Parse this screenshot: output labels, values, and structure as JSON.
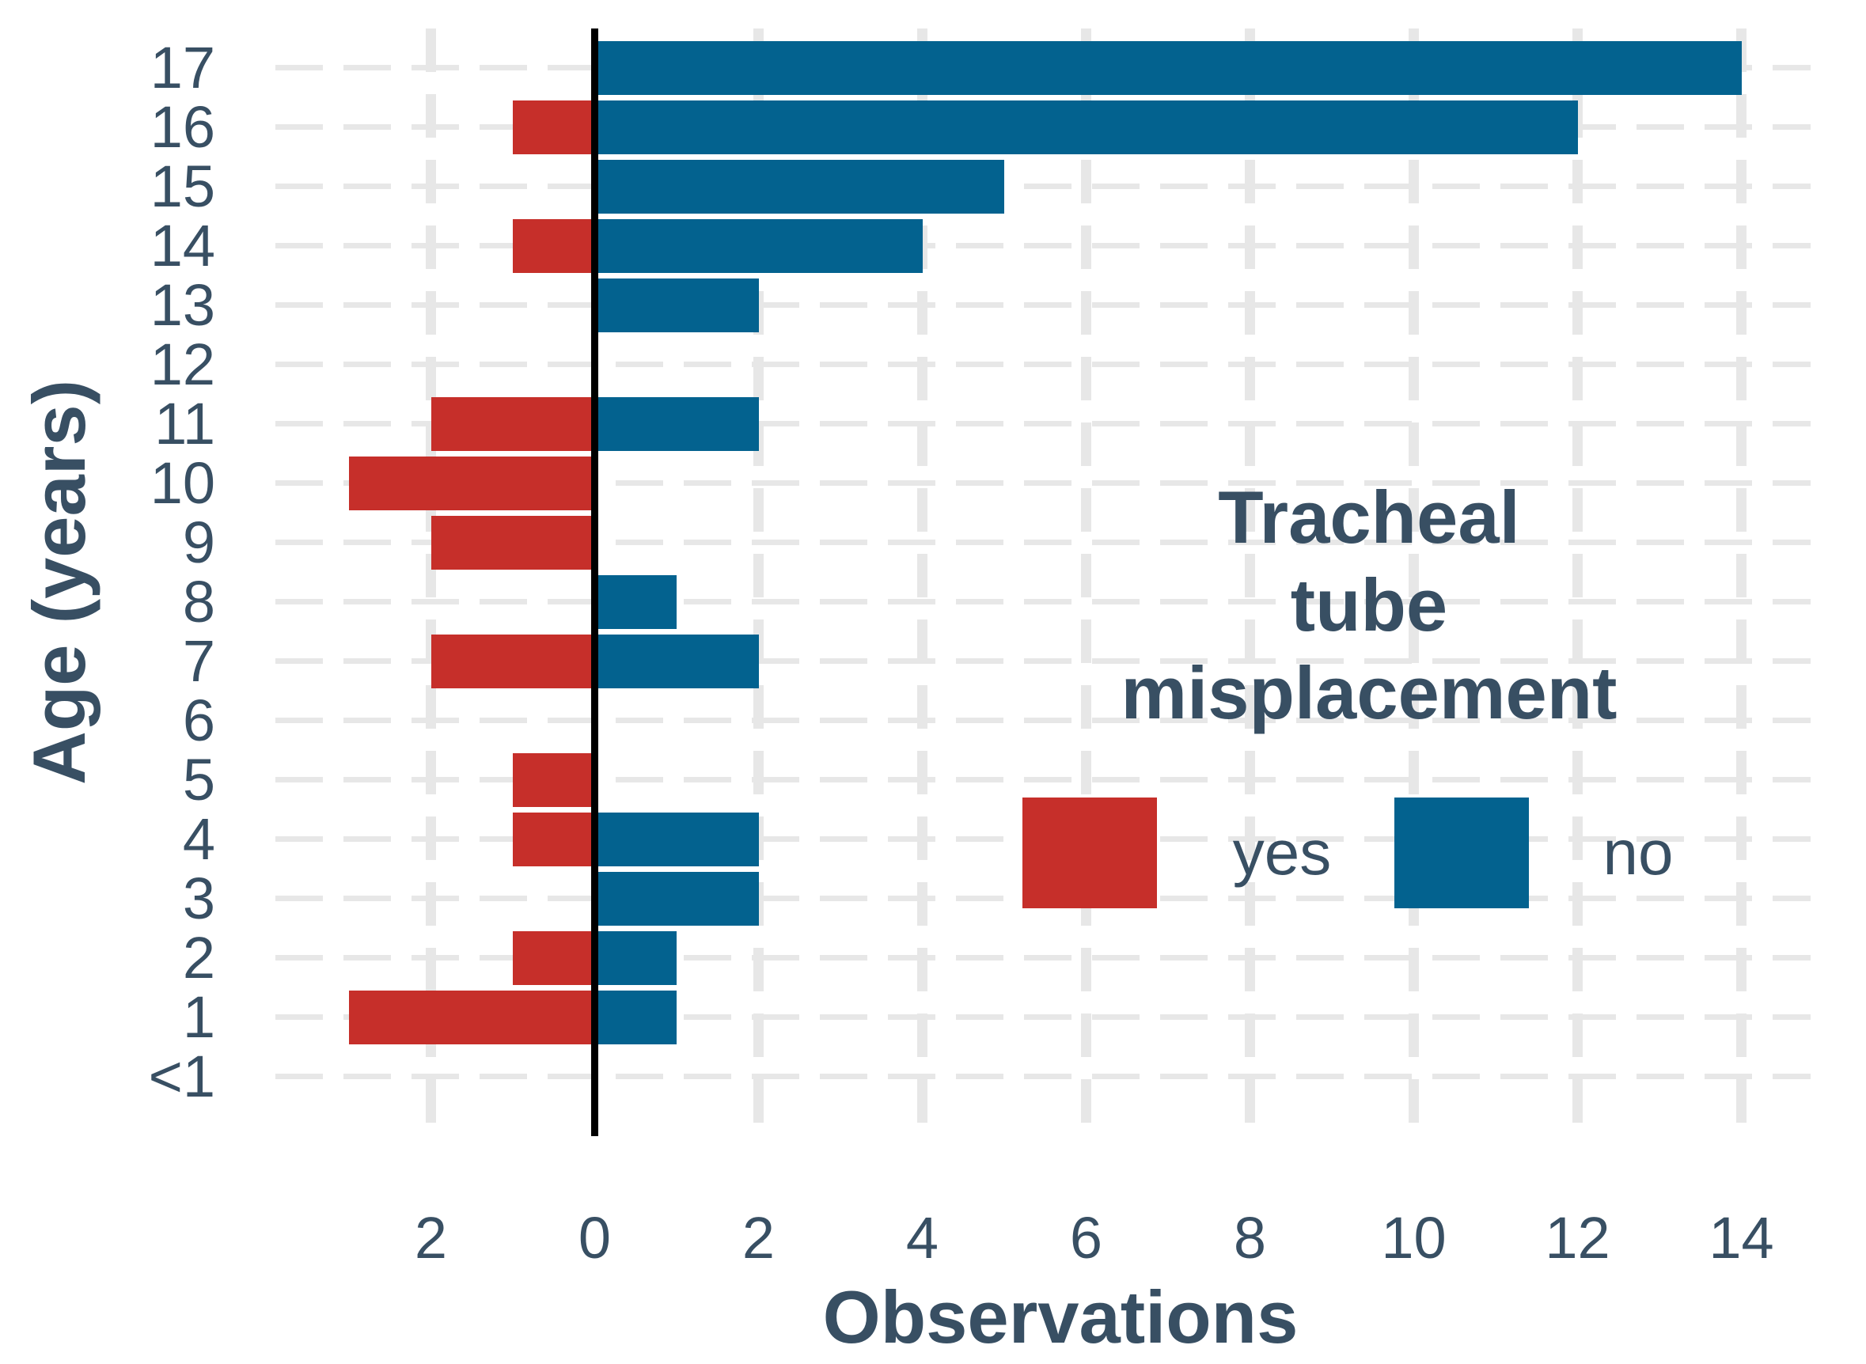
{
  "figure": {
    "y_axis_title": "Age (years)",
    "x_axis_title": "Observations",
    "legend": {
      "title_lines": [
        "Tracheal",
        "tube",
        "misplacement"
      ],
      "items": [
        {
          "label": "yes",
          "color": "#c62f2a"
        },
        {
          "label": "no",
          "color": "#03628f"
        }
      ]
    },
    "colors": {
      "text": "#384f63",
      "grid": "#e7e7e7",
      "zero_line": "#000000",
      "background": "#ffffff",
      "yes_red": "#c62f2a",
      "no_blue": "#03628f"
    }
  },
  "chart_data": {
    "type": "bar",
    "subtype": "diverging-horizontal",
    "title": "",
    "xlabel": "Observations",
    "ylabel": "Age (years)",
    "categories": [
      "17",
      "16",
      "15",
      "14",
      "13",
      "12",
      "11",
      "10",
      "9",
      "8",
      "7",
      "6",
      "5",
      "4",
      "3",
      "2",
      "1",
      "<1"
    ],
    "series": [
      {
        "name": "yes",
        "legend_label": "yes",
        "direction": "left",
        "color": "#c62f2a",
        "values": [
          0,
          1,
          0,
          1,
          0,
          0,
          2,
          3,
          2,
          0,
          2,
          0,
          1,
          1,
          0,
          1,
          3,
          0
        ]
      },
      {
        "name": "no",
        "legend_label": "no",
        "direction": "right",
        "color": "#03628f",
        "values": [
          14,
          12,
          5,
          4,
          2,
          0,
          2,
          0,
          0,
          1,
          2,
          0,
          0,
          2,
          2,
          1,
          1,
          0
        ]
      }
    ],
    "x_ticks": [
      -2,
      0,
      2,
      4,
      6,
      8,
      10,
      12,
      14
    ],
    "x_tick_labels": [
      "2",
      "0",
      "2",
      "4",
      "6",
      "8",
      "10",
      "12",
      "14"
    ],
    "xlim": [
      -3.85,
      14.85
    ],
    "grid": "dashed light-gray; horizontal line per age category, vertical line every 2 units",
    "zero_line": true,
    "legend_position": "inside-right"
  }
}
